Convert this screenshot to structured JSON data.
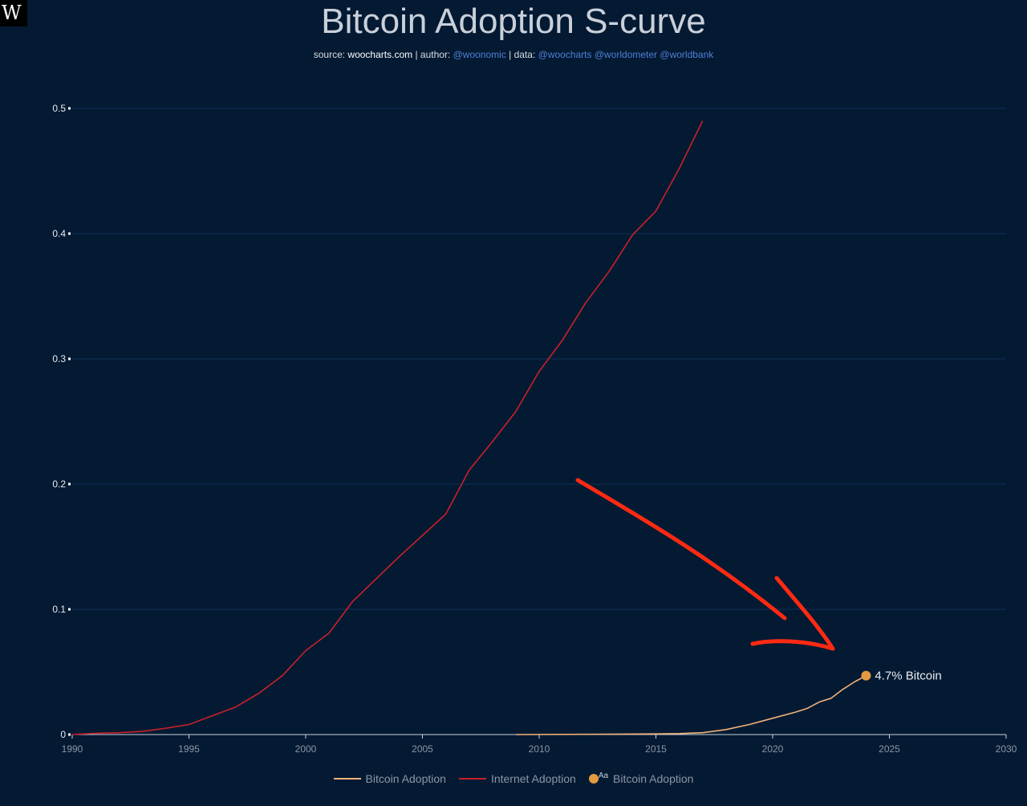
{
  "logo": {
    "letter": "W",
    "icon": "woocharts-logo"
  },
  "header": {
    "title": "Bitcoin Adoption S-curve",
    "subtitle": {
      "source_label": "source: ",
      "source": "woocharts.com",
      "author_label": " | author: ",
      "author": "@woonomic",
      "data_label": " | data: ",
      "data_sources": "@woocharts @worldometer @worldbank"
    }
  },
  "colors": {
    "background": "#041a33",
    "bitcoin": "#f2b27a",
    "internet": "#c8202a",
    "marker": "#e49a43",
    "arrow": "#ff2a12",
    "grid": "#0f2f55"
  },
  "chart_data": {
    "type": "line",
    "title": "Bitcoin Adoption S-curve",
    "xlabel": "",
    "ylabel": "",
    "xlim": [
      1990,
      2030
    ],
    "ylim": [
      0,
      0.5
    ],
    "x_ticks": [
      1990,
      1995,
      2000,
      2005,
      2010,
      2015,
      2020,
      2025,
      2030
    ],
    "y_ticks": [
      0,
      0.1,
      0.2,
      0.3,
      0.4,
      0.5
    ],
    "y_tick_labels": [
      "0",
      "0.1",
      "0.2",
      "0.3",
      "0.4",
      "0.5"
    ],
    "grid": true,
    "series": [
      {
        "name": "Internet Adoption",
        "color": "#c8202a",
        "points": [
          [
            1990,
            0.0
          ],
          [
            1991,
            0.001
          ],
          [
            1992,
            0.0015
          ],
          [
            1993,
            0.0025
          ],
          [
            1994,
            0.005
          ],
          [
            1995,
            0.008
          ],
          [
            1996,
            0.015
          ],
          [
            1997,
            0.022
          ],
          [
            1998,
            0.033
          ],
          [
            1999,
            0.047
          ],
          [
            2000,
            0.067
          ],
          [
            2001,
            0.081
          ],
          [
            2002,
            0.106
          ],
          [
            2003,
            0.124
          ],
          [
            2004,
            0.142
          ],
          [
            2005,
            0.159
          ],
          [
            2006,
            0.176
          ],
          [
            2007,
            0.211
          ],
          [
            2008,
            0.234
          ],
          [
            2009,
            0.258
          ],
          [
            2010,
            0.29
          ],
          [
            2011,
            0.315
          ],
          [
            2012,
            0.345
          ],
          [
            2013,
            0.37
          ],
          [
            2014,
            0.399
          ],
          [
            2015,
            0.418
          ],
          [
            2016,
            0.452
          ],
          [
            2017,
            0.49
          ]
        ]
      },
      {
        "name": "Bitcoin Adoption",
        "color": "#f2b27a",
        "points": [
          [
            2009,
            0.0
          ],
          [
            2012,
            0.0002
          ],
          [
            2015,
            0.0005
          ],
          [
            2016,
            0.0008
          ],
          [
            2017,
            0.0015
          ],
          [
            2018,
            0.004
          ],
          [
            2019,
            0.008
          ],
          [
            2020,
            0.013
          ],
          [
            2021,
            0.018
          ],
          [
            2021.5,
            0.021
          ],
          [
            2022,
            0.026
          ],
          [
            2022.5,
            0.029
          ],
          [
            2023,
            0.036
          ],
          [
            2023.5,
            0.042
          ],
          [
            2024,
            0.047
          ]
        ]
      }
    ],
    "annotations": [
      {
        "label": "4.7% Bitcoin",
        "x": 2024,
        "y": 0.047,
        "series": "Bitcoin Adoption"
      }
    ],
    "legend": {
      "position": "bottom-center",
      "items": [
        "Bitcoin Adoption",
        "Internet Adoption",
        "Bitcoin Adoption"
      ],
      "marker_text": "Aa"
    }
  }
}
